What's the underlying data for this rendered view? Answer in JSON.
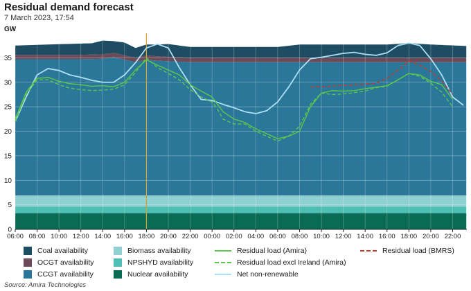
{
  "header": {
    "title": "Residual demand forecast",
    "subtitle": "7 March 2023, 17:54",
    "unit": "GW"
  },
  "source": "Source: Amira Technologies",
  "colors": {
    "coal": "#1e4d63",
    "ocgt": "#6b4a5a",
    "ccgt": "#2b7799",
    "biomass": "#8fd0d2",
    "npshyd": "#4fbfb5",
    "nuclear": "#0a6b55",
    "residual_amira": "#5cc84a",
    "residual_excl_ireland": "#5cc84a",
    "net_nonrenewable": "#aee0f5",
    "residual_bmrs": "#c0392b",
    "now_marker": "#e0a020"
  },
  "chart_data": {
    "type": "area",
    "title": "Residual demand forecast",
    "ylabel": "GW",
    "ylim": [
      0,
      40
    ],
    "yticks": [
      0,
      5,
      10,
      15,
      20,
      25,
      30,
      35
    ],
    "xticks": [
      "06:00",
      "08:00",
      "10:00",
      "12:00",
      "14:00",
      "16:00",
      "18:00",
      "20:00",
      "22:00",
      "00:00",
      "02:00",
      "04:00",
      "06:00",
      "08:00",
      "10:00",
      "12:00",
      "14:00",
      "16:00",
      "18:00",
      "20:00",
      "22:00"
    ],
    "x_hours": [
      0,
      2,
      4,
      6,
      8,
      10,
      12,
      14,
      16,
      18,
      20,
      22,
      24,
      26,
      28,
      30,
      32,
      34,
      36,
      38,
      40
    ],
    "x_range_hours": [
      0,
      41.3
    ],
    "now_marker_label": "18:00",
    "now_marker_hours": 12,
    "legend_location": "bottom",
    "stacked_areas": [
      {
        "name": "Nuclear availability",
        "key": "nuclear",
        "values": [
          [
            0,
            3.3
          ],
          [
            41.3,
            3.3
          ]
        ]
      },
      {
        "name": "NPSHYD availability",
        "key": "npshyd",
        "values": [
          [
            0,
            1.3
          ],
          [
            41.3,
            1.3
          ]
        ]
      },
      {
        "name": "Biomass availability",
        "key": "biomass",
        "values": [
          [
            0,
            2.3
          ],
          [
            41.3,
            2.3
          ]
        ]
      },
      {
        "name": "CCGT availability",
        "key": "ccgt",
        "values": [
          [
            0,
            27.8
          ],
          [
            6,
            27.8
          ],
          [
            8,
            27.9
          ],
          [
            9,
            28.2
          ],
          [
            11,
            27.2
          ],
          [
            12,
            27.7
          ],
          [
            13,
            27.5
          ],
          [
            16,
            27.2
          ],
          [
            24,
            27.2
          ],
          [
            41.3,
            27.2
          ]
        ]
      },
      {
        "name": "OCGT availability",
        "key": "ocgt",
        "values": [
          [
            0,
            0.9
          ],
          [
            41.3,
            0.9
          ]
        ]
      },
      {
        "name": "Coal availability",
        "key": "coal",
        "values": [
          [
            0,
            1.9
          ],
          [
            6,
            2.3
          ],
          [
            7,
            2.3
          ],
          [
            8,
            2.8
          ],
          [
            9,
            2.4
          ],
          [
            10,
            2.6
          ],
          [
            11,
            2.0
          ],
          [
            12,
            2.2
          ],
          [
            14,
            2.6
          ],
          [
            16,
            2.2
          ],
          [
            24,
            2.2
          ],
          [
            26,
            2.7
          ],
          [
            30,
            2.7
          ],
          [
            34,
            2.7
          ],
          [
            36,
            3.0
          ],
          [
            38,
            2.7
          ],
          [
            41.3,
            2.4
          ]
        ]
      }
    ],
    "series": [
      {
        "name": "Residual load (Amira)",
        "key": "residual_amira",
        "style": "solid",
        "values": [
          [
            0,
            22.5
          ],
          [
            1,
            28
          ],
          [
            2,
            30.8
          ],
          [
            3,
            31
          ],
          [
            4,
            30.2
          ],
          [
            5,
            29.7
          ],
          [
            6,
            29.5
          ],
          [
            7,
            29.2
          ],
          [
            8,
            29.3
          ],
          [
            9,
            29.1
          ],
          [
            10,
            30.0
          ],
          [
            11,
            32.5
          ],
          [
            12,
            34.6
          ],
          [
            13,
            33.5
          ],
          [
            14,
            32.5
          ],
          [
            15,
            31.5
          ],
          [
            16,
            29.5
          ],
          [
            17,
            28.2
          ],
          [
            18,
            27
          ],
          [
            18.5,
            25.5
          ],
          [
            19,
            24
          ],
          [
            20,
            22.5
          ],
          [
            21,
            21.8
          ],
          [
            22,
            20.5
          ],
          [
            23,
            19.5
          ],
          [
            24,
            18.5
          ],
          [
            25,
            19
          ],
          [
            26,
            20
          ],
          [
            27,
            25
          ],
          [
            28,
            27.8
          ],
          [
            29,
            28.3
          ],
          [
            30,
            28.2
          ],
          [
            31,
            28.3
          ],
          [
            32,
            28.7
          ],
          [
            33,
            29.0
          ],
          [
            34,
            29.3
          ],
          [
            35,
            30.5
          ],
          [
            36,
            31.8
          ],
          [
            37,
            31.5
          ],
          [
            38,
            30.2
          ],
          [
            39,
            29.5
          ],
          [
            40,
            26.5
          ]
        ]
      },
      {
        "name": "Residual load excl Ireland (Amira)",
        "key": "residual_excl_ireland",
        "style": "dashed",
        "values": [
          [
            0,
            22
          ],
          [
            1,
            27.5
          ],
          [
            2,
            30.5
          ],
          [
            3,
            30.5
          ],
          [
            4,
            29.5
          ],
          [
            5,
            28.8
          ],
          [
            6,
            28.5
          ],
          [
            7,
            28.3
          ],
          [
            8,
            28.4
          ],
          [
            9,
            28.6
          ],
          [
            10,
            29.5
          ],
          [
            11,
            32
          ],
          [
            12,
            35
          ],
          [
            13,
            33
          ],
          [
            14,
            31.8
          ],
          [
            15,
            30.5
          ],
          [
            16,
            28.5
          ],
          [
            17,
            27
          ],
          [
            18,
            26
          ],
          [
            18.5,
            24.5
          ],
          [
            19,
            22.5
          ],
          [
            20,
            21.5
          ],
          [
            21,
            21.5
          ],
          [
            22,
            20
          ],
          [
            23,
            19
          ],
          [
            24,
            18
          ],
          [
            25,
            19
          ],
          [
            26,
            21
          ],
          [
            27,
            25.5
          ],
          [
            28,
            27.8
          ],
          [
            29,
            27.5
          ],
          [
            30,
            27.6
          ],
          [
            31,
            27.9
          ],
          [
            32,
            28.2
          ],
          [
            33,
            28.9
          ],
          [
            34,
            29.2
          ],
          [
            35,
            30.5
          ],
          [
            36,
            31.8
          ],
          [
            37,
            31.2
          ],
          [
            38,
            29.8
          ],
          [
            39,
            28
          ],
          [
            40,
            25
          ]
        ]
      },
      {
        "name": "Net non-renewable",
        "key": "net_nonrenewable",
        "style": "solid",
        "values": [
          [
            0,
            22
          ],
          [
            1,
            27
          ],
          [
            2,
            31.5
          ],
          [
            3,
            32.8
          ],
          [
            4,
            32.4
          ],
          [
            5,
            31.5
          ],
          [
            6,
            31
          ],
          [
            7,
            30.4
          ],
          [
            8,
            30
          ],
          [
            9,
            30
          ],
          [
            10,
            31.5
          ],
          [
            11,
            34
          ],
          [
            12,
            37
          ],
          [
            13,
            37.8
          ],
          [
            14,
            37
          ],
          [
            15,
            33
          ],
          [
            16,
            29.5
          ],
          [
            17,
            26.5
          ],
          [
            18,
            26.3
          ],
          [
            19,
            25.5
          ],
          [
            20,
            24.8
          ],
          [
            21,
            24
          ],
          [
            22,
            23.6
          ],
          [
            23,
            24.2
          ],
          [
            24,
            26
          ],
          [
            25,
            29
          ],
          [
            26,
            32.5
          ],
          [
            27,
            34.8
          ],
          [
            28,
            35.1
          ],
          [
            29,
            35.5
          ],
          [
            30,
            35.9
          ],
          [
            31,
            36.1
          ],
          [
            32,
            35.7
          ],
          [
            33,
            35.5
          ],
          [
            34,
            36
          ],
          [
            35,
            37.5
          ],
          [
            36,
            38
          ],
          [
            37,
            37.5
          ],
          [
            38,
            34.8
          ],
          [
            39,
            31.5
          ],
          [
            40,
            27
          ],
          [
            41,
            25.3
          ]
        ]
      },
      {
        "name": "Residual load (BMRS)",
        "key": "residual_bmrs",
        "style": "dashed",
        "values": [
          [
            27,
            29
          ],
          [
            28,
            29.1
          ],
          [
            29,
            29.2
          ],
          [
            30,
            29.4
          ],
          [
            31,
            29.5
          ],
          [
            32,
            29.6
          ],
          [
            33,
            29.8
          ],
          [
            34,
            30.8
          ],
          [
            35,
            32.5
          ],
          [
            36,
            34.3
          ],
          [
            37,
            33.5
          ],
          [
            38,
            32.2
          ],
          [
            39,
            30.3
          ],
          [
            40,
            27.5
          ]
        ]
      }
    ]
  },
  "legend": {
    "col1": [
      "Coal availability",
      "OCGT availability",
      "CCGT availability"
    ],
    "col2": [
      "Biomass availability",
      "NPSHYD availability",
      "Nuclear availability"
    ],
    "col3": [
      "Residual load (Amira)",
      "Residual load excl Ireland (Amira)",
      "Net non-renewable"
    ],
    "col4": [
      "Residual load (BMRS)"
    ]
  }
}
